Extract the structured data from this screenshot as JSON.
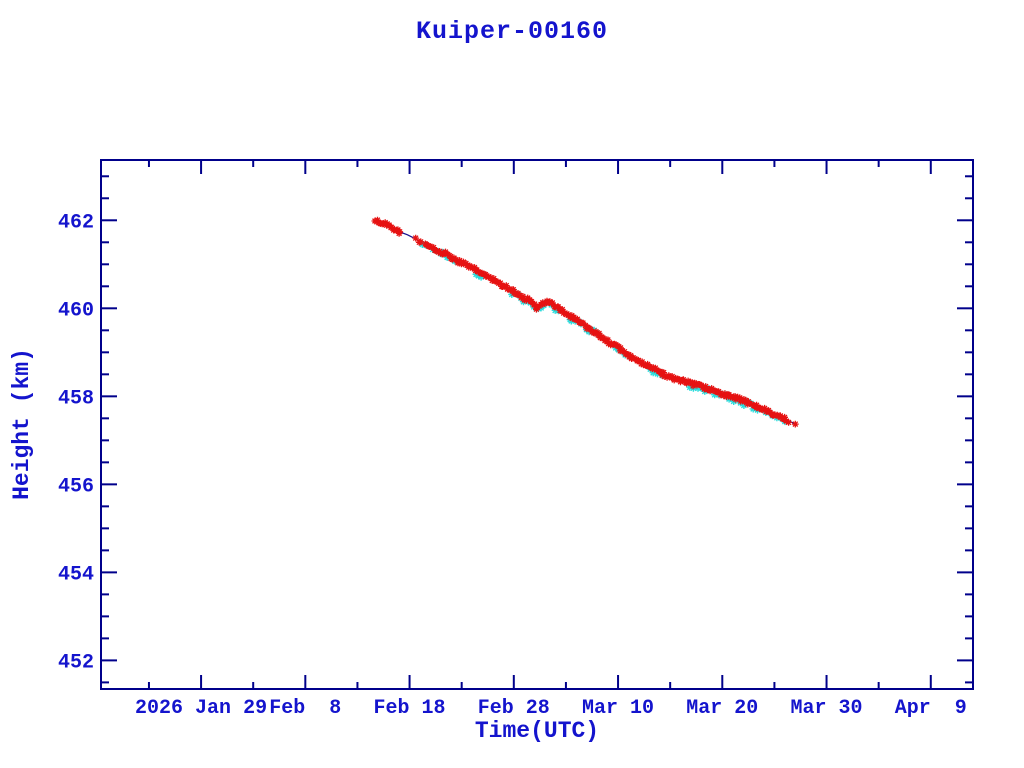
{
  "chart_data": {
    "type": "scatter",
    "title": "Kuiper-00160",
    "xlabel": "Time(UTC)",
    "ylabel": "Height (km)",
    "x_axis": {
      "tick_labels": [
        "2026 Jan 29",
        "Feb  8",
        "Feb 18",
        "Feb 28",
        "Mar 10",
        "Mar 20",
        "Mar 30",
        "Apr  9"
      ],
      "tick_days": [
        0,
        10,
        20,
        30,
        40,
        50,
        60,
        70
      ],
      "minor_step_days": 5,
      "range_days": [
        -9.6,
        74.05
      ],
      "epoch_label": "days since 2026 Jan 29"
    },
    "y_axis": {
      "tick_values": [
        452,
        454,
        456,
        458,
        460,
        462
      ],
      "minor_step": 0.5,
      "range": [
        451.35,
        463.37
      ]
    },
    "grid": "off",
    "legend": "none",
    "colors": {
      "text": "#1414cd",
      "frame": "#00008b",
      "line": "#1a1290",
      "primary_marker": "#e61212",
      "secondary_marker": "#2adcdc"
    },
    "series": [
      {
        "name": "height-primary",
        "marker": "asterisk",
        "color_key": "primary_marker",
        "anchors": [
          [
            16.7,
            462.0
          ],
          [
            17.2,
            461.97
          ],
          [
            17.9,
            461.88
          ],
          [
            18.8,
            461.76
          ],
          [
            19.8,
            461.67
          ],
          [
            20.8,
            461.55
          ],
          [
            21.7,
            461.44
          ],
          [
            22.7,
            461.32
          ],
          [
            23.7,
            461.21
          ],
          [
            24.6,
            461.08
          ],
          [
            25.6,
            460.96
          ],
          [
            26.6,
            460.84
          ],
          [
            27.5,
            460.72
          ],
          [
            28.5,
            460.58
          ],
          [
            29.5,
            460.46
          ],
          [
            30.4,
            460.32
          ],
          [
            31.4,
            460.18
          ],
          [
            31.9,
            460.1
          ],
          [
            32.3,
            459.97
          ],
          [
            32.7,
            460.12
          ],
          [
            33.2,
            460.15
          ],
          [
            33.8,
            460.07
          ],
          [
            34.8,
            459.92
          ],
          [
            35.8,
            459.77
          ],
          [
            36.7,
            459.62
          ],
          [
            37.7,
            459.48
          ],
          [
            38.6,
            459.32
          ],
          [
            39.6,
            459.16
          ],
          [
            40.6,
            459.0
          ],
          [
            41.5,
            458.86
          ],
          [
            42.5,
            458.72
          ],
          [
            43.5,
            458.61
          ],
          [
            44.4,
            458.5
          ],
          [
            45.4,
            458.41
          ],
          [
            46.4,
            458.33
          ],
          [
            47.3,
            458.26
          ],
          [
            48.3,
            458.19
          ],
          [
            49.3,
            458.12
          ],
          [
            50.2,
            458.05
          ],
          [
            51.2,
            457.97
          ],
          [
            52.2,
            457.88
          ],
          [
            53.1,
            457.78
          ],
          [
            54.1,
            457.69
          ],
          [
            55.1,
            457.59
          ],
          [
            56.0,
            457.49
          ],
          [
            56.6,
            457.42
          ],
          [
            57.0,
            457.37
          ]
        ],
        "dense_range": [
          16.7,
          56.3
        ],
        "sparse_ranges": [
          [
            19.0,
            21.6
          ]
        ],
        "sparse_keep_prob": 0.3,
        "density_per_day": 7.5,
        "jitter_km": 0.09,
        "extra_points": [
          [
            57.0,
            457.37
          ]
        ]
      },
      {
        "name": "height-secondary",
        "marker": "asterisk",
        "color_key": "secondary_marker",
        "cluster_ranges": [
          [
            21.2,
            21.8
          ],
          [
            22.3,
            24.6
          ],
          [
            26.3,
            27.3
          ],
          [
            29.8,
            34.3
          ],
          [
            35.3,
            38.2
          ],
          [
            39.8,
            41.2
          ],
          [
            42.8,
            44.6
          ],
          [
            46.8,
            53.6
          ],
          [
            54.2,
            56.3
          ]
        ],
        "density_per_day": 3.2,
        "offset_km": -0.04,
        "jitter_km": 0.12
      }
    ]
  }
}
